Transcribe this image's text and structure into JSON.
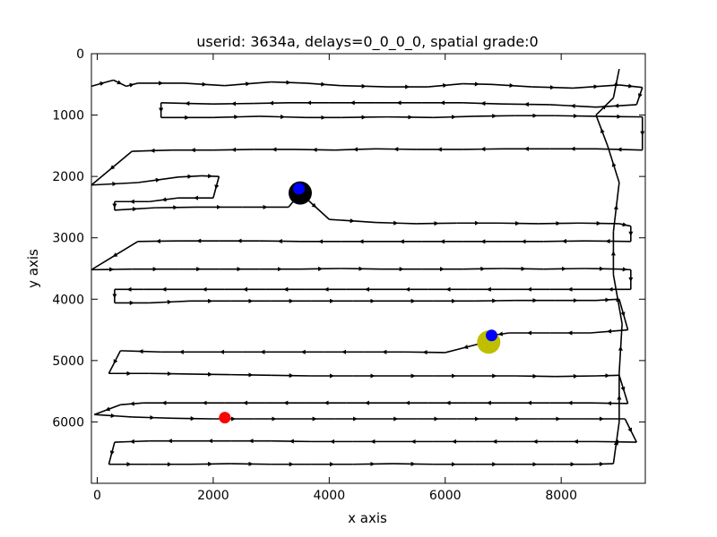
{
  "chart_data": {
    "type": "line",
    "title": "userid: 3634a, delays=0_0_0_0, spatial grade:0",
    "xlabel": "x axis",
    "ylabel": "y axis",
    "xlim": [
      -100,
      9450
    ],
    "ylim": [
      7000,
      0
    ],
    "y_inverted": true,
    "grid": false,
    "x_ticks": [
      0,
      2000,
      4000,
      6000,
      8000
    ],
    "y_ticks": [
      0,
      1000,
      2000,
      3000,
      4000,
      5000,
      6000
    ],
    "series": [
      {
        "points": [
          [
            -100,
            530
          ],
          [
            280,
            430
          ],
          [
            500,
            530
          ],
          [
            700,
            480
          ],
          [
            1500,
            480
          ],
          [
            2200,
            520
          ],
          [
            3000,
            460
          ],
          [
            3600,
            480
          ],
          [
            4200,
            520
          ],
          [
            5000,
            540
          ],
          [
            5700,
            540
          ],
          [
            6300,
            490
          ],
          [
            6800,
            500
          ],
          [
            7500,
            540
          ],
          [
            8200,
            560
          ],
          [
            9000,
            510
          ],
          [
            9400,
            550
          ],
          [
            9300,
            830
          ],
          [
            8600,
            870
          ],
          [
            7800,
            830
          ],
          [
            7000,
            820
          ],
          [
            6300,
            800
          ],
          [
            5600,
            800
          ],
          [
            4800,
            800
          ],
          [
            4000,
            800
          ],
          [
            3300,
            800
          ],
          [
            2700,
            810
          ],
          [
            2000,
            820
          ],
          [
            1100,
            800
          ],
          [
            1100,
            1040
          ],
          [
            2000,
            1040
          ],
          [
            2800,
            1020
          ],
          [
            3600,
            1040
          ],
          [
            4200,
            1040
          ],
          [
            5000,
            1030
          ],
          [
            5800,
            1040
          ],
          [
            6500,
            1020
          ],
          [
            7200,
            1010
          ],
          [
            7900,
            1010
          ],
          [
            8600,
            1020
          ],
          [
            9400,
            1030
          ],
          [
            9400,
            1570
          ],
          [
            8600,
            1550
          ],
          [
            7800,
            1550
          ],
          [
            7000,
            1550
          ],
          [
            6300,
            1560
          ],
          [
            5500,
            1560
          ],
          [
            4800,
            1550
          ],
          [
            4100,
            1570
          ],
          [
            3400,
            1560
          ],
          [
            2700,
            1560
          ],
          [
            2000,
            1570
          ],
          [
            1300,
            1570
          ],
          [
            600,
            1590
          ],
          [
            -100,
            2140
          ],
          [
            700,
            2100
          ],
          [
            1400,
            2010
          ],
          [
            1800,
            1990
          ],
          [
            2100,
            2000
          ],
          [
            2000,
            2350
          ],
          [
            1400,
            2350
          ],
          [
            900,
            2410
          ],
          [
            300,
            2410
          ],
          [
            300,
            2550
          ],
          [
            1000,
            2510
          ],
          [
            1700,
            2500
          ],
          [
            2500,
            2500
          ],
          [
            3300,
            2500
          ],
          [
            3500,
            2270
          ],
          [
            4000,
            2700
          ],
          [
            4800,
            2750
          ],
          [
            5500,
            2770
          ],
          [
            6200,
            2760
          ],
          [
            6900,
            2760
          ],
          [
            7600,
            2770
          ],
          [
            8300,
            2760
          ],
          [
            9000,
            2770
          ],
          [
            9200,
            2810
          ],
          [
            9200,
            3060
          ],
          [
            8400,
            3050
          ],
          [
            7700,
            3060
          ],
          [
            7000,
            3060
          ],
          [
            6300,
            3060
          ],
          [
            5600,
            3060
          ],
          [
            4900,
            3060
          ],
          [
            4200,
            3060
          ],
          [
            3500,
            3060
          ],
          [
            2800,
            3050
          ],
          [
            2100,
            3050
          ],
          [
            1400,
            3050
          ],
          [
            700,
            3060
          ],
          [
            -100,
            3520
          ],
          [
            600,
            3510
          ],
          [
            1400,
            3510
          ],
          [
            2100,
            3510
          ],
          [
            2800,
            3510
          ],
          [
            3500,
            3510
          ],
          [
            4200,
            3500
          ],
          [
            4900,
            3510
          ],
          [
            5600,
            3510
          ],
          [
            6300,
            3510
          ],
          [
            7000,
            3500
          ],
          [
            7700,
            3510
          ],
          [
            8400,
            3500
          ],
          [
            9000,
            3510
          ],
          [
            9200,
            3520
          ],
          [
            9200,
            3840
          ],
          [
            8500,
            3840
          ],
          [
            7800,
            3840
          ],
          [
            7100,
            3840
          ],
          [
            6400,
            3840
          ],
          [
            5700,
            3840
          ],
          [
            5000,
            3840
          ],
          [
            4300,
            3840
          ],
          [
            3600,
            3840
          ],
          [
            2900,
            3840
          ],
          [
            2200,
            3840
          ],
          [
            1500,
            3840
          ],
          [
            800,
            3840
          ],
          [
            300,
            3840
          ],
          [
            300,
            4060
          ],
          [
            900,
            4060
          ],
          [
            1600,
            4030
          ],
          [
            2300,
            4030
          ],
          [
            3000,
            4030
          ],
          [
            3700,
            4030
          ],
          [
            4400,
            4030
          ],
          [
            5100,
            4030
          ],
          [
            5800,
            4030
          ],
          [
            6500,
            4030
          ],
          [
            7200,
            4020
          ],
          [
            7900,
            4020
          ],
          [
            8600,
            4020
          ],
          [
            9000,
            4000
          ],
          [
            9150,
            4500
          ],
          [
            8500,
            4550
          ],
          [
            7800,
            4550
          ],
          [
            7100,
            4550
          ],
          [
            6800,
            4590
          ],
          [
            6700,
            4700
          ],
          [
            6000,
            4870
          ],
          [
            5300,
            4860
          ],
          [
            4600,
            4860
          ],
          [
            3900,
            4860
          ],
          [
            3200,
            4860
          ],
          [
            2500,
            4860
          ],
          [
            1800,
            4860
          ],
          [
            1100,
            4860
          ],
          [
            400,
            4840
          ],
          [
            200,
            5210
          ],
          [
            900,
            5210
          ],
          [
            1600,
            5220
          ],
          [
            2300,
            5230
          ],
          [
            3000,
            5240
          ],
          [
            3700,
            5250
          ],
          [
            4400,
            5250
          ],
          [
            5100,
            5250
          ],
          [
            5800,
            5250
          ],
          [
            6500,
            5250
          ],
          [
            7200,
            5250
          ],
          [
            7900,
            5260
          ],
          [
            8600,
            5250
          ],
          [
            9000,
            5240
          ],
          [
            9150,
            5700
          ],
          [
            8500,
            5690
          ],
          [
            7800,
            5690
          ],
          [
            7100,
            5690
          ],
          [
            6400,
            5690
          ],
          [
            5700,
            5690
          ],
          [
            5000,
            5690
          ],
          [
            4300,
            5690
          ],
          [
            3600,
            5690
          ],
          [
            2900,
            5690
          ],
          [
            2200,
            5690
          ],
          [
            1500,
            5690
          ],
          [
            800,
            5690
          ],
          [
            400,
            5720
          ],
          [
            -50,
            5880
          ],
          [
            600,
            5920
          ],
          [
            1300,
            5940
          ],
          [
            2000,
            5950
          ],
          [
            2700,
            5950
          ],
          [
            3400,
            5950
          ],
          [
            4100,
            5950
          ],
          [
            4800,
            5950
          ],
          [
            5500,
            5950
          ],
          [
            6200,
            5950
          ],
          [
            6900,
            5950
          ],
          [
            7600,
            5950
          ],
          [
            8300,
            5950
          ],
          [
            9100,
            5950
          ],
          [
            9300,
            6330
          ],
          [
            8600,
            6320
          ],
          [
            7900,
            6320
          ],
          [
            7200,
            6320
          ],
          [
            6500,
            6320
          ],
          [
            5800,
            6320
          ],
          [
            5100,
            6320
          ],
          [
            4400,
            6320
          ],
          [
            3700,
            6320
          ],
          [
            3000,
            6310
          ],
          [
            2300,
            6310
          ],
          [
            1600,
            6310
          ],
          [
            900,
            6310
          ],
          [
            300,
            6330
          ],
          [
            200,
            6690
          ],
          [
            900,
            6690
          ],
          [
            1600,
            6690
          ],
          [
            2300,
            6680
          ],
          [
            3000,
            6690
          ],
          [
            3700,
            6690
          ],
          [
            4400,
            6690
          ],
          [
            5100,
            6680
          ],
          [
            5800,
            6690
          ],
          [
            6500,
            6690
          ],
          [
            7200,
            6690
          ],
          [
            7900,
            6690
          ],
          [
            8500,
            6690
          ],
          [
            8900,
            6680
          ],
          [
            9000,
            6000
          ],
          [
            9000,
            5200
          ],
          [
            9050,
            4400
          ],
          [
            8900,
            3600
          ],
          [
            8900,
            2900
          ],
          [
            9000,
            2100
          ],
          [
            8800,
            1500
          ],
          [
            8600,
            1000
          ],
          [
            8900,
            720
          ],
          [
            9000,
            250
          ]
        ],
        "color": "#000000"
      }
    ],
    "markers": [
      {
        "x": 3500,
        "y": 2270,
        "color": "#000000",
        "size": "large"
      },
      {
        "x": 3480,
        "y": 2200,
        "color": "#0000ff",
        "size": "small"
      },
      {
        "x": 6750,
        "y": 4700,
        "color": "#bfbf00",
        "size": "large"
      },
      {
        "x": 6800,
        "y": 4590,
        "color": "#0000ff",
        "size": "small"
      },
      {
        "x": 2200,
        "y": 5930,
        "color": "#ff0000",
        "size": "small"
      }
    ]
  }
}
